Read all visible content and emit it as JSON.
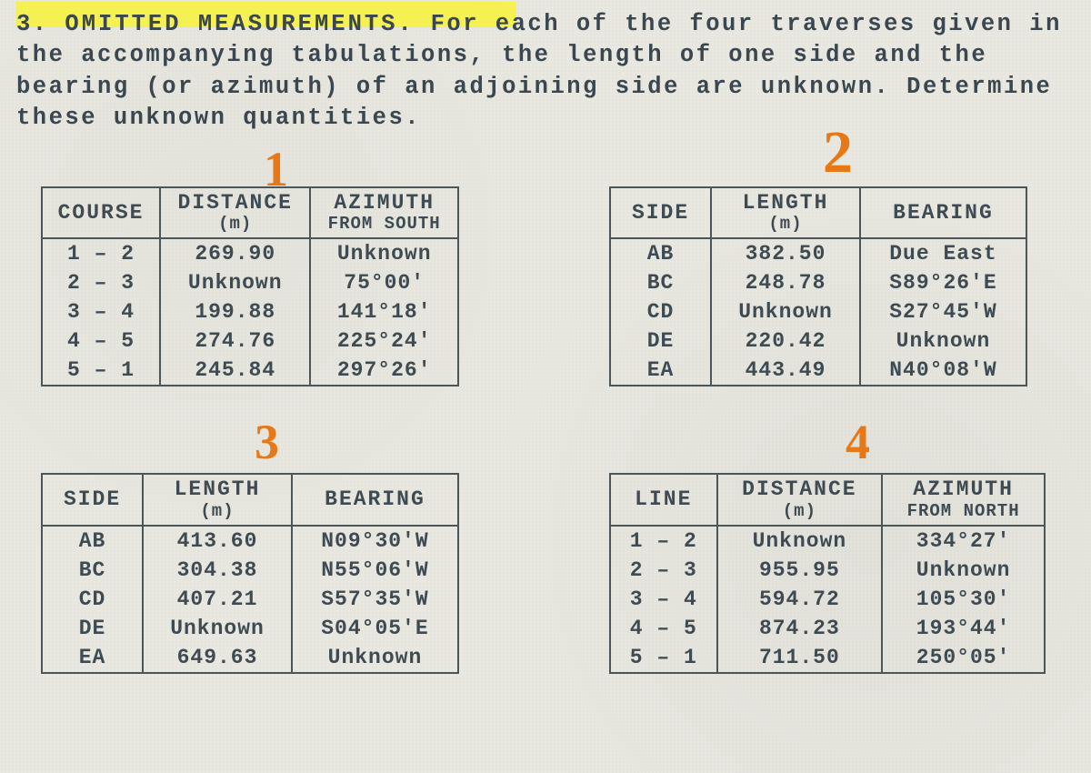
{
  "problem": {
    "number": "3.",
    "title": "OMITTED  MEASUREMENTS.",
    "body": "For  each  of the four  traverses given  in the accompanying tabulations,  the length of  one side and the bearing (or azimuth) of an adjoining side  are unknown. Determine these unknown quantities."
  },
  "annotations": {
    "n1": "1",
    "n2": "2",
    "n3": "3",
    "n4": "4"
  },
  "colors": {
    "highlight": "#f7f243",
    "ink": "#3a4750",
    "annotation": "#e67817",
    "border": "#4b5659",
    "bg": "#e8e8e0"
  },
  "table1": {
    "headers": {
      "c1": "COURSE",
      "c2": "DISTANCE",
      "c2sub": "(m)",
      "c3": "AZIMUTH",
      "c3sub": "FROM SOUTH"
    },
    "rows": [
      {
        "a": "1 – 2",
        "b": "269.90",
        "c": "Unknown"
      },
      {
        "a": "2 – 3",
        "b": "Unknown",
        "c": "75°00'"
      },
      {
        "a": "3 – 4",
        "b": "199.88",
        "c": "141°18'"
      },
      {
        "a": "4 – 5",
        "b": "274.76",
        "c": "225°24'"
      },
      {
        "a": "5 – 1",
        "b": "245.84",
        "c": "297°26'"
      }
    ]
  },
  "table2": {
    "headers": {
      "c1": "SIDE",
      "c2": "LENGTH",
      "c2sub": "(m)",
      "c3": "BEARING"
    },
    "rows": [
      {
        "a": "AB",
        "b": "382.50",
        "c": "Due East"
      },
      {
        "a": "BC",
        "b": "248.78",
        "c": "S89°26'E"
      },
      {
        "a": "CD",
        "b": "Unknown",
        "c": "S27°45'W"
      },
      {
        "a": "DE",
        "b": "220.42",
        "c": "Unknown"
      },
      {
        "a": "EA",
        "b": "443.49",
        "c": "N40°08'W"
      }
    ]
  },
  "table3": {
    "headers": {
      "c1": "SIDE",
      "c2": "LENGTH",
      "c2sub": "(m)",
      "c3": "BEARING"
    },
    "rows": [
      {
        "a": "AB",
        "b": "413.60",
        "c": "N09°30'W"
      },
      {
        "a": "BC",
        "b": "304.38",
        "c": "N55°06'W"
      },
      {
        "a": "CD",
        "b": "407.21",
        "c": "S57°35'W"
      },
      {
        "a": "DE",
        "b": "Unknown",
        "c": "S04°05'E"
      },
      {
        "a": "EA",
        "b": "649.63",
        "c": "Unknown"
      }
    ]
  },
  "table4": {
    "headers": {
      "c1": "LINE",
      "c2": "DISTANCE",
      "c2sub": "(m)",
      "c3": "AZIMUTH",
      "c3sub": "FROM NORTH"
    },
    "rows": [
      {
        "a": "1 – 2",
        "b": "Unknown",
        "c": "334°27'"
      },
      {
        "a": "2 – 3",
        "b": "955.95",
        "c": "Unknown"
      },
      {
        "a": "3 – 4",
        "b": "594.72",
        "c": "105°30'"
      },
      {
        "a": "4 – 5",
        "b": "874.23",
        "c": "193°44'"
      },
      {
        "a": "5 – 1",
        "b": "711.50",
        "c": "250°05'"
      }
    ]
  }
}
